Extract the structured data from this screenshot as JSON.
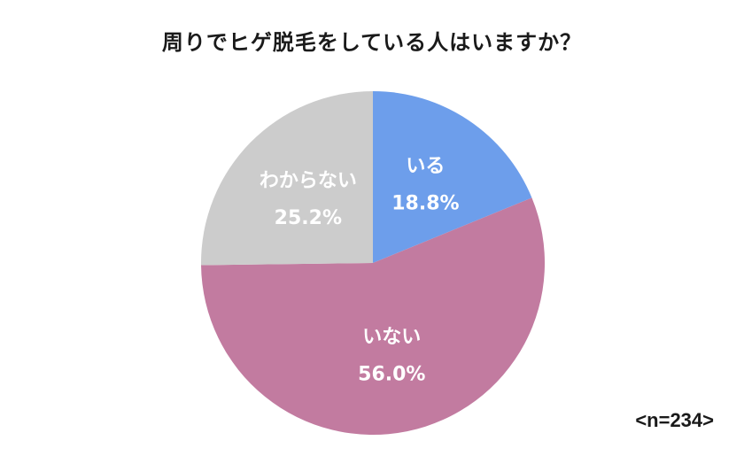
{
  "chart_data": {
    "type": "pie",
    "title": "周りでヒゲ脱毛をしている人はいますか？",
    "slices": [
      {
        "label": "いる",
        "value": 18.8,
        "value_label": "18.8%",
        "color": "#6d9eeb"
      },
      {
        "label": "いない",
        "value": 56.0,
        "value_label": "56.0%",
        "color": "#c27ba0"
      },
      {
        "label": "わからない",
        "value": 25.2,
        "value_label": "25.2%",
        "color": "#cccccc"
      }
    ],
    "start": "12 o'clock",
    "direction": "clockwise",
    "note": "<n=234>"
  }
}
